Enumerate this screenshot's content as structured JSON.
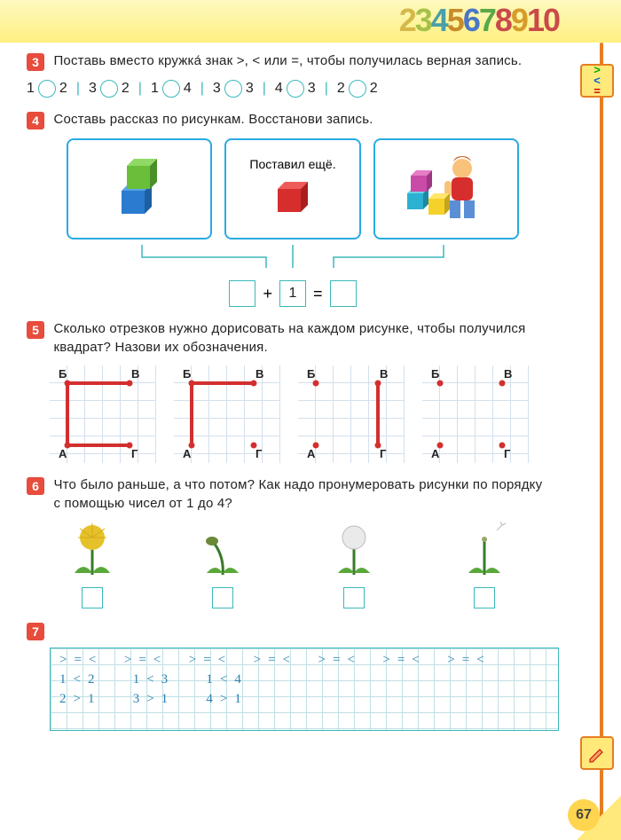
{
  "page_number": "67",
  "header_numbers": [
    {
      "d": "2",
      "c": "#d6b84a"
    },
    {
      "d": "3",
      "c": "#a7c14a"
    },
    {
      "d": "4",
      "c": "#4aa0a7"
    },
    {
      "d": "5",
      "c": "#c98b2a"
    },
    {
      "d": "6",
      "c": "#4a76c7"
    },
    {
      "d": "7",
      "c": "#5aa84a"
    },
    {
      "d": "8",
      "c": "#c94a4a"
    },
    {
      "d": "9",
      "c": "#d69b2a"
    },
    {
      "d": "1",
      "c": "#c94a4a"
    },
    {
      "d": "0",
      "c": "#c94a4a"
    }
  ],
  "task3": {
    "num": "3",
    "text": "Поставь вместо кружка́ знак >, < или =, чтобы получилась верная запись.",
    "pairs": [
      {
        "a": "1",
        "b": "2"
      },
      {
        "a": "3",
        "b": "2"
      },
      {
        "a": "1",
        "b": "4"
      },
      {
        "a": "3",
        "b": "3"
      },
      {
        "a": "4",
        "b": "3"
      },
      {
        "a": "2",
        "b": "2"
      }
    ]
  },
  "task4": {
    "num": "4",
    "text": "Составь рассказ по рисункам. Восстанови запись.",
    "middle_label": "Поставил ещё.",
    "plus": "+",
    "one": "1",
    "equals": "="
  },
  "task5": {
    "num": "5",
    "text": "Сколько отрезков нужно дорисовать на каждом рисунке, чтобы получился квадрат? Назови их обозначения.",
    "labels": {
      "tl": "Б",
      "tr": "В",
      "bl": "А",
      "br": "Г"
    },
    "figures": [
      {
        "segs": [
          "AB",
          "BV",
          "AG"
        ]
      },
      {
        "segs": [
          "AB",
          "BV"
        ]
      },
      {
        "segs": [
          "VG"
        ]
      },
      {
        "segs": []
      }
    ]
  },
  "task6": {
    "num": "6",
    "text": "Что было раньше, а что потом? Как надо пронумеровать рисунки по порядку с помощью чисел от 1 до 4?"
  },
  "task7": {
    "num": "7",
    "lines": {
      "l1": ">=<  >=<  >=<  >=<  >=<  >=<  >=<",
      "l2": "1<2   1<3   1<4",
      "l3": "2>1   3>1   4>1"
    }
  }
}
